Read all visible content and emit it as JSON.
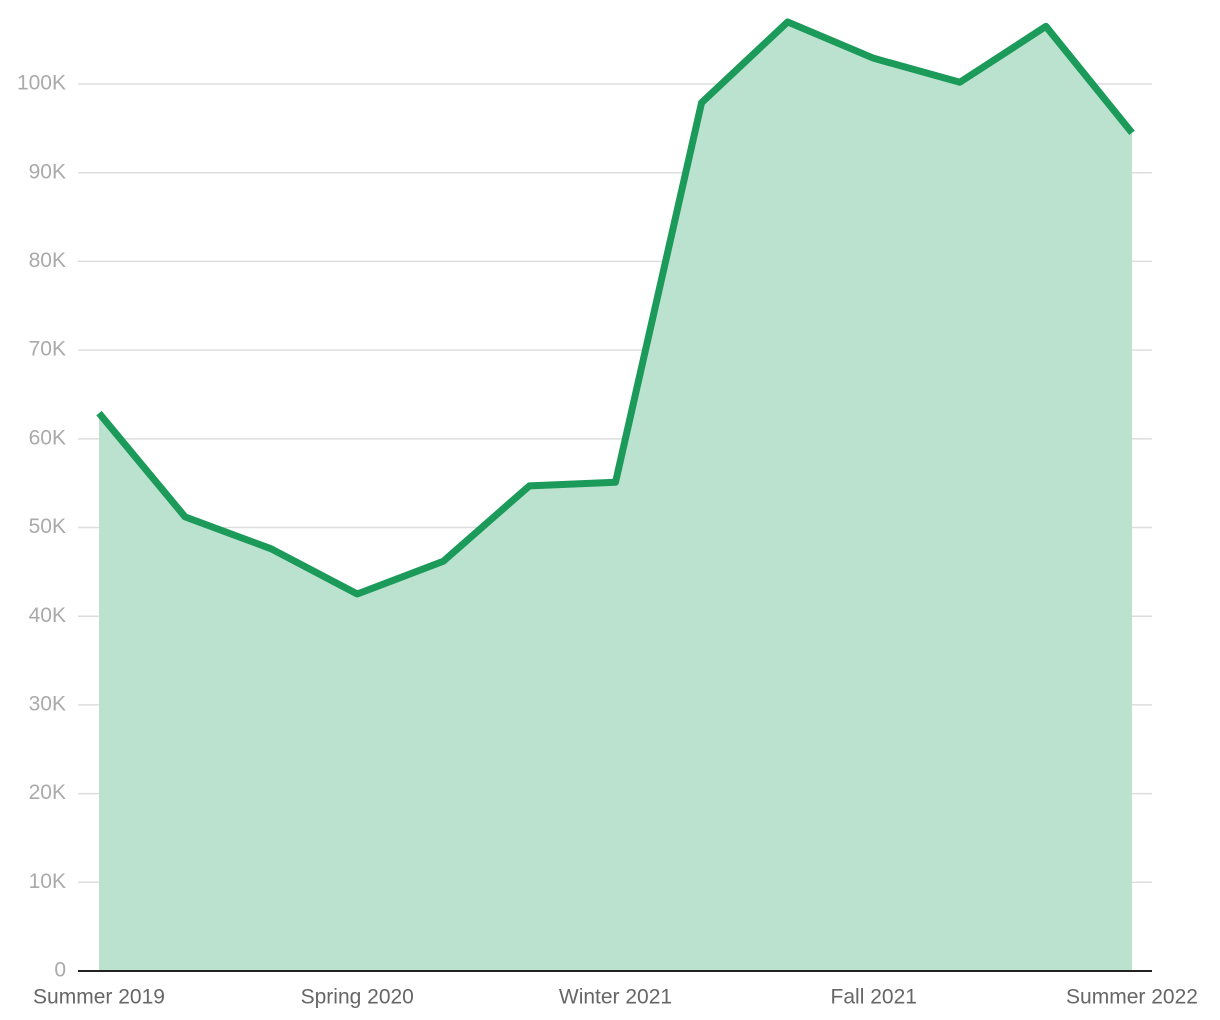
{
  "chart_data": {
    "type": "area",
    "categories": [
      "Summer 2019",
      null,
      null,
      "Spring 2020",
      null,
      null,
      "Winter 2021",
      null,
      null,
      "Fall 2021",
      null,
      null,
      "Summer 2022"
    ],
    "values": [
      62900,
      51200,
      47600,
      42500,
      46200,
      54700,
      55100,
      97900,
      107000,
      102900,
      100200,
      106500,
      94500
    ],
    "color": "#1b9a59",
    "fill_color": "#bae2cf",
    "ylim": [
      0,
      107500
    ],
    "yticks": [
      0,
      {
        "value": 10000,
        "label": "10K"
      },
      {
        "value": 20000,
        "label": "20K"
      },
      {
        "value": 30000,
        "label": "30K"
      },
      {
        "value": 40000,
        "label": "40K"
      },
      {
        "value": 50000,
        "label": "50K"
      },
      {
        "value": 60000,
        "label": "60K"
      },
      {
        "value": 70000,
        "label": "70K"
      },
      {
        "value": 80000,
        "label": "80K"
      },
      {
        "value": 90000,
        "label": "90K"
      },
      {
        "value": 100000,
        "label": "100K"
      }
    ],
    "grid": true
  }
}
